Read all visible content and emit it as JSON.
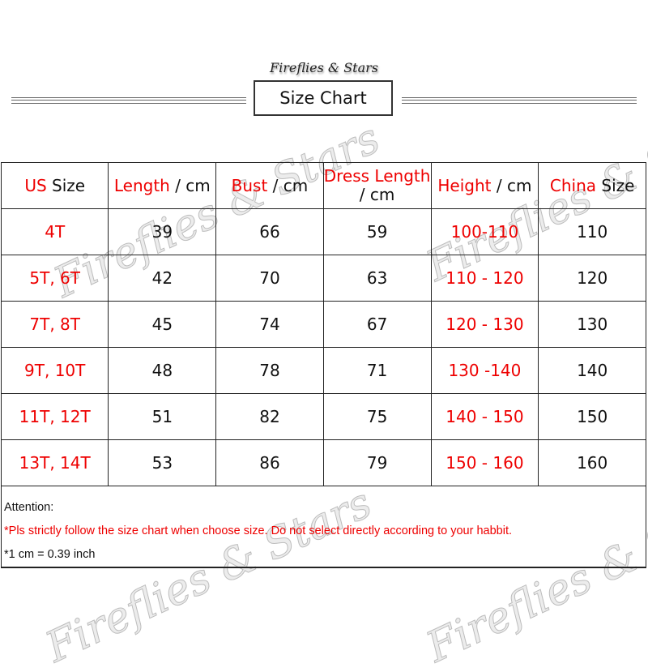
{
  "brand": "Fireflies & Stars",
  "title": "Size Chart",
  "watermark": "Fireflies & Stars",
  "colors": {
    "accent": "#ee0000",
    "text": "#111111"
  },
  "headers": [
    {
      "red": "US",
      "rest": " Size"
    },
    {
      "red": "Length",
      "rest": " / cm"
    },
    {
      "red": "Bust",
      "rest": " / cm"
    },
    {
      "red": "Dress Length",
      "rest": " / cm"
    },
    {
      "red": "Height",
      "rest": " / cm"
    },
    {
      "red": "China",
      "rest": " Size"
    }
  ],
  "rows": [
    [
      "4T",
      "39",
      "66",
      "59",
      "100-110",
      "110"
    ],
    [
      "5T, 6T",
      "42",
      "70",
      "63",
      "110 - 120",
      "120"
    ],
    [
      "7T, 8T",
      "45",
      "74",
      "67",
      "120 - 130",
      "130"
    ],
    [
      "9T, 10T",
      "48",
      "78",
      "71",
      "130 -140",
      "140"
    ],
    [
      "11T, 12T",
      "51",
      "82",
      "75",
      "140 - 150",
      "150"
    ],
    [
      "13T, 14T",
      "53",
      "86",
      "79",
      "150 - 160",
      "160"
    ]
  ],
  "notes": {
    "attention": "Attention:",
    "warning": "*Pls strictly follow the size chart when choose size. Do not select directly according to your habbit.",
    "conversion": "*1 cm = 0.39 inch"
  }
}
